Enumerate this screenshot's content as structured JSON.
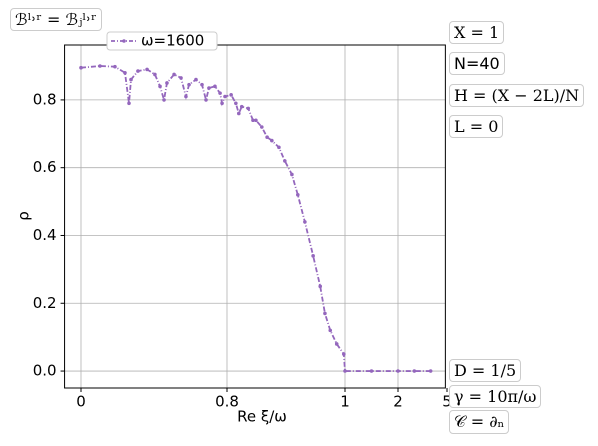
{
  "chart_data": {
    "type": "line",
    "xlabel": "Re ξ/ω",
    "ylabel": "ρ",
    "x": [
      0,
      0.104,
      0.186,
      0.241,
      0.263,
      0.274,
      0.312,
      0.362,
      0.405,
      0.433,
      0.455,
      0.471,
      0.51,
      0.548,
      0.575,
      0.592,
      0.63,
      0.663,
      0.685,
      0.701,
      0.734,
      0.762,
      0.773,
      0.789,
      0.807,
      0.815,
      0.82,
      0.825,
      0.836,
      0.844,
      0.849,
      0.859,
      0.868,
      0.876,
      0.888,
      0.898,
      0.91,
      0.92,
      0.932,
      0.946,
      0.958,
      0.966,
      0.975,
      0.986,
      0.998,
      1.0,
      1.5,
      2,
      3,
      4
    ],
    "series": [
      {
        "name": "ω=1600",
        "color": "#9467bd",
        "values": [
          0.895,
          0.9,
          0.898,
          0.88,
          0.79,
          0.86,
          0.885,
          0.89,
          0.875,
          0.84,
          0.8,
          0.85,
          0.875,
          0.865,
          0.81,
          0.845,
          0.86,
          0.845,
          0.8,
          0.835,
          0.84,
          0.82,
          0.79,
          0.81,
          0.815,
          0.79,
          0.76,
          0.78,
          0.775,
          0.74,
          0.74,
          0.72,
          0.69,
          0.68,
          0.66,
          0.62,
          0.58,
          0.52,
          0.44,
          0.34,
          0.25,
          0.17,
          0.12,
          0.08,
          0.05,
          0,
          0,
          0,
          0,
          0
        ]
      }
    ],
    "xlim": [
      -0.09,
      4.9
    ],
    "xticks": [
      0,
      0.8,
      1,
      2,
      5
    ],
    "ylim": [
      -0.05,
      0.962
    ],
    "yticks": [
      {
        "value": 0,
        "label": "0.0"
      },
      0.2,
      0.4,
      0.6,
      0.8
    ],
    "grid": true,
    "annotations": [
      "ℬˡ˒ʳ = ℬⱼˡ˒ʳ",
      "X = 1",
      "N=40",
      "H = (X − 2L)/N",
      "L = 0",
      "D = 1/5",
      "γ = 10π/ω",
      "𝒞 = ∂ₙ"
    ]
  }
}
